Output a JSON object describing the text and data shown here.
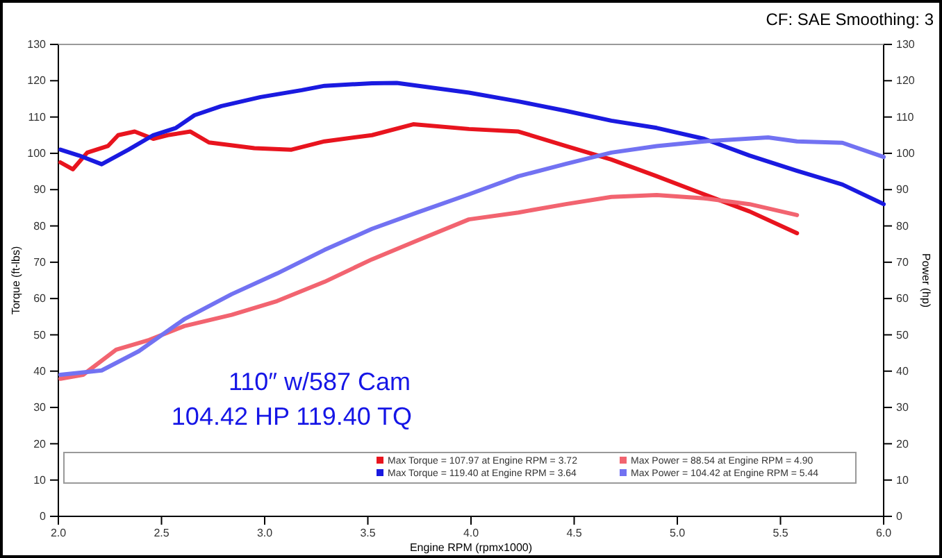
{
  "chart_data": {
    "type": "line",
    "xlabel": "Engine RPM (rpmx1000)",
    "ylabel": "Torque (ft-lbs)",
    "y2label": "Power (hp)",
    "xlim": [
      2.0,
      6.0
    ],
    "xticks": [
      {
        "value": 2,
        "label": "2.0"
      },
      2.5,
      {
        "value": 3,
        "label": "3.0"
      },
      3.5,
      {
        "value": 4,
        "label": "4.0"
      },
      4.5,
      {
        "value": 5,
        "label": "5.0"
      },
      5.5,
      {
        "value": 6,
        "label": "6.0"
      }
    ],
    "ylim": [
      0,
      130
    ],
    "yticks": [
      0,
      10,
      20,
      30,
      40,
      50,
      60,
      70,
      80,
      90,
      100,
      110,
      120,
      130
    ],
    "y2lim": [
      0,
      130
    ],
    "y2ticks": [
      0,
      10,
      20,
      30,
      40,
      50,
      60,
      70,
      80,
      90,
      100,
      110,
      120,
      130
    ],
    "legend": "bottom",
    "marker": "none",
    "line_style": "solid",
    "annotations": [
      "CF: SAE Smoothing: 3",
      "110″ w/587 Cam",
      "104.42 HP    119.40 TQ"
    ],
    "series": [
      {
        "name": "Max Torque = 107.97 at Engine RPM = 3.72",
        "color": "#e8141e",
        "x": [
          2.01,
          2.07,
          2.14,
          2.24,
          2.29,
          2.37,
          2.46,
          2.53,
          2.64,
          2.73,
          2.95,
          3.13,
          3.29,
          3.52,
          3.72,
          3.99,
          4.23,
          4.46,
          4.68,
          4.9,
          5.13,
          5.35,
          5.58
        ],
        "values": [
          97.5,
          95.6,
          100.2,
          102,
          105,
          106,
          104,
          105,
          106,
          103,
          101.4,
          101,
          103.3,
          105,
          108,
          106.7,
          106,
          102,
          98.3,
          93.7,
          88.7,
          84,
          78
        ]
      },
      {
        "name": "Max Power = 88.54 at Engine RPM = 4.90",
        "color": "#f26470",
        "x": [
          2.01,
          2.12,
          2.28,
          2.44,
          2.61,
          2.84,
          3.06,
          3.29,
          3.52,
          3.74,
          3.99,
          4.23,
          4.46,
          4.68,
          4.9,
          5.13,
          5.35,
          5.58
        ],
        "values": [
          37.9,
          39,
          45.9,
          48.6,
          52.4,
          55.5,
          59.3,
          64.6,
          70.8,
          76,
          81.8,
          83.7,
          86,
          88,
          88.5,
          87.6,
          86,
          83
        ]
      },
      {
        "name": "Max Torque = 119.40 at Engine RPM = 3.64",
        "color": "#1a1ae0",
        "x": [
          2.01,
          2.1,
          2.21,
          2.34,
          2.46,
          2.57,
          2.66,
          2.79,
          2.98,
          3.18,
          3.29,
          3.52,
          3.64,
          3.99,
          4.23,
          4.46,
          4.68,
          4.9,
          5.13,
          5.35,
          5.58,
          5.8,
          6.0
        ],
        "values": [
          101,
          99.4,
          97,
          101,
          105,
          107,
          110.5,
          113,
          115.5,
          117.4,
          118.6,
          119.3,
          119.4,
          116.7,
          114.3,
          111.7,
          109,
          107,
          104,
          99.4,
          95.2,
          91.4,
          86
        ]
      },
      {
        "name": "Max Power = 104.42 at Engine RPM = 5.44",
        "color": "#7272f2",
        "x": [
          2.01,
          2.21,
          2.39,
          2.61,
          2.84,
          3.06,
          3.29,
          3.52,
          3.74,
          3.99,
          4.23,
          4.46,
          4.68,
          4.9,
          5.13,
          5.44,
          5.58,
          5.8,
          6.0
        ],
        "values": [
          39,
          40.2,
          45.5,
          54.3,
          61.2,
          66.9,
          73.4,
          79.2,
          83.7,
          88.7,
          93.7,
          97.1,
          100.2,
          102,
          103.3,
          104.4,
          103.3,
          102.9,
          99
        ]
      }
    ]
  }
}
